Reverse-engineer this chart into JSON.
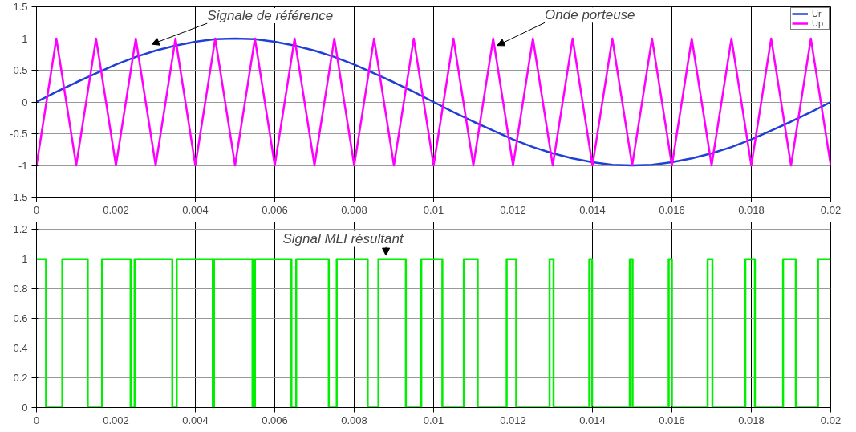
{
  "chart_data": [
    {
      "type": "line",
      "xlim": [
        0,
        0.02
      ],
      "ylim": [
        -1.5,
        1.5
      ],
      "xticks": [
        0,
        0.002,
        0.004,
        0.006,
        0.008,
        0.01,
        0.012,
        0.014,
        0.016,
        0.018,
        0.02
      ],
      "yticks": [
        -1.5,
        -1,
        -0.5,
        0,
        0.5,
        1,
        1.5
      ],
      "grid": true,
      "legend": "top right",
      "series": [
        {
          "name": "Ur",
          "color": "#1f3fd8",
          "x": [
            0,
            0.0005,
            0.001,
            0.0015,
            0.002,
            0.0025,
            0.003,
            0.0035,
            0.004,
            0.0045,
            0.005,
            0.0055,
            0.006,
            0.0065,
            0.007,
            0.0075,
            0.008,
            0.0085,
            0.009,
            0.0095,
            0.01,
            0.0105,
            0.011,
            0.0115,
            0.012,
            0.0125,
            0.013,
            0.0135,
            0.014,
            0.0145,
            0.015,
            0.0155,
            0.016,
            0.0165,
            0.017,
            0.0175,
            0.018,
            0.0185,
            0.019,
            0.0195,
            0.02
          ],
          "values": [
            0,
            0.16,
            0.31,
            0.45,
            0.59,
            0.71,
            0.81,
            0.89,
            0.95,
            0.99,
            1,
            0.99,
            0.95,
            0.89,
            0.81,
            0.71,
            0.59,
            0.45,
            0.31,
            0.16,
            0,
            -0.16,
            -0.31,
            -0.45,
            -0.59,
            -0.71,
            -0.81,
            -0.89,
            -0.95,
            -0.99,
            -1,
            -0.99,
            -0.95,
            -0.89,
            -0.81,
            -0.71,
            -0.59,
            -0.45,
            -0.31,
            -0.16,
            0
          ]
        },
        {
          "name": "Up",
          "color": "#ff00ff",
          "x": [
            0,
            0.0005,
            0.001,
            0.0015,
            0.002,
            0.0025,
            0.003,
            0.0035,
            0.004,
            0.0045,
            0.005,
            0.0055,
            0.006,
            0.0065,
            0.007,
            0.0075,
            0.008,
            0.0085,
            0.009,
            0.0095,
            0.01,
            0.0105,
            0.011,
            0.0115,
            0.012,
            0.0125,
            0.013,
            0.0135,
            0.014,
            0.0145,
            0.015,
            0.0155,
            0.016,
            0.0165,
            0.017,
            0.0175,
            0.018,
            0.0185,
            0.019,
            0.0195,
            0.02
          ],
          "values": [
            -1,
            1,
            -1,
            1,
            -1,
            1,
            -1,
            1,
            -1,
            1,
            -1,
            1,
            -1,
            1,
            -1,
            1,
            -1,
            1,
            -1,
            1,
            -1,
            1,
            -1,
            1,
            -1,
            1,
            -1,
            1,
            -1,
            1,
            -1,
            1,
            -1,
            1,
            -1,
            1,
            -1,
            1,
            -1,
            1,
            -1
          ]
        }
      ],
      "annotations": [
        {
          "text": "Signale de référence",
          "x": 0.0029,
          "y": 0.85
        },
        {
          "text": "Onde porteuse",
          "x": 0.0116,
          "y": 0.83
        }
      ]
    },
    {
      "type": "step",
      "xlim": [
        0,
        0.02
      ],
      "ylim": [
        0,
        1.25
      ],
      "xticks": [
        0,
        0.002,
        0.004,
        0.006,
        0.008,
        0.01,
        0.012,
        0.014,
        0.016,
        0.018,
        0.02
      ],
      "yticks": [
        0,
        0.2,
        0.4,
        0.6,
        0.8,
        1,
        1.2
      ],
      "grid": true,
      "series": [
        {
          "color": "#00ee00",
          "x": [
            0,
            0.00024,
            0.00065,
            0.00129,
            0.00165,
            0.00237,
            0.00247,
            0.00342,
            0.00353,
            0.00444,
            0.00447,
            0.00544,
            0.0055,
            0.00642,
            0.00654,
            0.00736,
            0.00756,
            0.00834,
            0.00861,
            0.0093,
            0.00969,
            0.01022,
            0.01076,
            0.01111,
            0.01184,
            0.01208,
            0.01292,
            0.01302,
            0.01392,
            0.01399,
            0.01494,
            0.01501,
            0.01592,
            0.016,
            0.0169,
            0.01702,
            0.01785,
            0.01809,
            0.0188,
            0.01912,
            0.01968,
            0.02
          ],
          "values": [
            1,
            0,
            1,
            0,
            1,
            0,
            1,
            0,
            1,
            0,
            1,
            0,
            1,
            0,
            1,
            0,
            1,
            0,
            1,
            0,
            1,
            0,
            1,
            0,
            1,
            0,
            1,
            0,
            1,
            0,
            1,
            0,
            1,
            0,
            1,
            0,
            1,
            0,
            1,
            0,
            1,
            1
          ]
        }
      ],
      "annotations": [
        {
          "text": "Signal MLI résultant",
          "x": 0.0088,
          "y": 1
        }
      ]
    }
  ]
}
